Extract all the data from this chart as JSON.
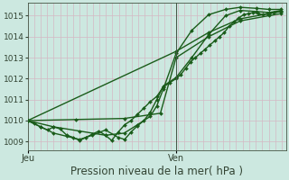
{
  "bg_color": "#cce8e0",
  "grid_color": "#d4b8c4",
  "line_color": "#1a5c1a",
  "xlabel": "Pression niveau de la mer( hPa )",
  "xlabel_fontsize": 8.5,
  "ylim": [
    1008.6,
    1015.6
  ],
  "yticks": [
    1009,
    1010,
    1011,
    1012,
    1013,
    1014,
    1015
  ],
  "xlim": [
    0.0,
    1.07
  ],
  "vline_x": 0.615,
  "series": [
    {
      "x": [
        0.0,
        0.027,
        0.054,
        0.082,
        0.108,
        0.135,
        0.162,
        0.188,
        0.215,
        0.242,
        0.268,
        0.295,
        0.322,
        0.348,
        0.375,
        0.402,
        0.428,
        0.455,
        0.482,
        0.508,
        0.535,
        0.562,
        0.588,
        0.615,
        0.635,
        0.655,
        0.675,
        0.695,
        0.715,
        0.735,
        0.755,
        0.775,
        0.795,
        0.815,
        0.835,
        0.855,
        0.875,
        0.895,
        0.915,
        0.935,
        0.955,
        0.975,
        0.995,
        1.02,
        1.05
      ],
      "y": [
        1010.0,
        1009.85,
        1009.7,
        1009.55,
        1009.7,
        1009.6,
        1009.3,
        1009.2,
        1009.05,
        1009.2,
        1009.35,
        1009.5,
        1009.3,
        1009.05,
        1009.45,
        1009.8,
        1010.0,
        1010.3,
        1010.6,
        1010.9,
        1011.15,
        1011.6,
        1011.8,
        1012.0,
        1012.2,
        1012.5,
        1012.8,
        1013.0,
        1013.2,
        1013.4,
        1013.6,
        1013.8,
        1014.0,
        1014.2,
        1014.5,
        1014.7,
        1014.9,
        1015.05,
        1015.1,
        1015.15,
        1015.1,
        1015.05,
        1015.1,
        1015.15,
        1015.2
      ],
      "lw": 1.0,
      "ms": 2.0
    },
    {
      "x": [
        0.0,
        0.615,
        0.75,
        0.88,
        1.0,
        1.05
      ],
      "y": [
        1010.0,
        1013.3,
        1014.2,
        1014.85,
        1015.1,
        1015.2
      ],
      "lw": 1.0,
      "ms": 2.0
    },
    {
      "x": [
        0.0,
        0.2,
        0.4,
        0.55,
        0.615,
        0.75,
        0.88,
        1.0,
        1.05
      ],
      "y": [
        1010.0,
        1010.05,
        1010.1,
        1010.35,
        1013.0,
        1014.0,
        1014.75,
        1015.0,
        1015.1
      ],
      "lw": 1.0,
      "ms": 2.0
    },
    {
      "x": [
        0.0,
        0.108,
        0.215,
        0.322,
        0.4,
        0.455,
        0.508,
        0.535,
        0.562,
        0.615,
        0.68,
        0.75,
        0.82,
        0.88,
        0.95,
        1.0,
        1.05
      ],
      "y": [
        1010.0,
        1009.7,
        1009.5,
        1009.3,
        1009.4,
        1009.8,
        1010.2,
        1010.7,
        1011.5,
        1013.2,
        1014.3,
        1015.05,
        1015.3,
        1015.4,
        1015.35,
        1015.3,
        1015.3
      ],
      "lw": 1.0,
      "ms": 2.0
    },
    {
      "x": [
        0.0,
        0.054,
        0.108,
        0.162,
        0.215,
        0.268,
        0.322,
        0.375,
        0.402,
        0.428,
        0.455,
        0.482,
        0.508,
        0.535,
        0.562,
        0.615,
        0.68,
        0.75,
        0.82,
        0.88,
        0.95,
        1.0,
        1.05
      ],
      "y": [
        1010.0,
        1009.7,
        1009.4,
        1009.25,
        1009.1,
        1009.3,
        1009.55,
        1009.2,
        1009.1,
        1009.45,
        1009.75,
        1010.0,
        1010.4,
        1011.0,
        1011.65,
        1012.05,
        1013.0,
        1014.1,
        1015.0,
        1015.25,
        1015.2,
        1015.15,
        1015.25
      ],
      "lw": 1.0,
      "ms": 2.0
    }
  ],
  "jeu_label": "Jeu",
  "ven_label": "Ven",
  "tick_fontsize": 6.5,
  "label_fontsize": 7.0,
  "ytick_left_pad": 2
}
